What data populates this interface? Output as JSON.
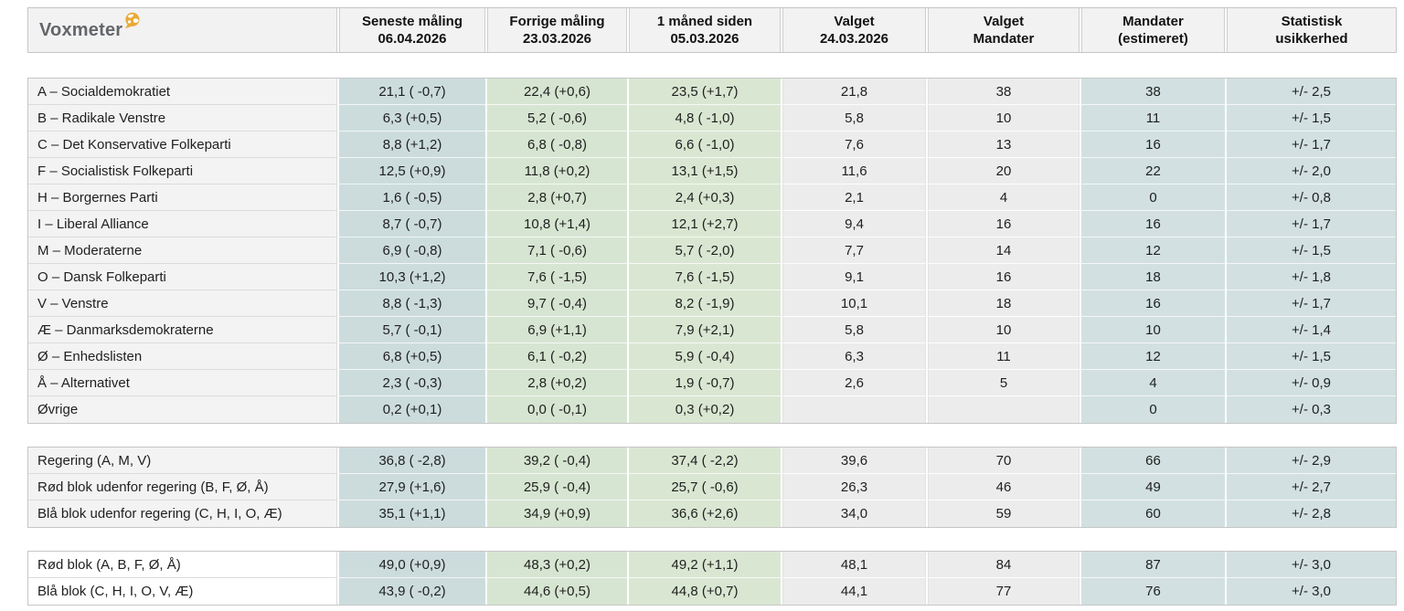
{
  "brand": {
    "name": "Voxmeter",
    "icon": "globe-icon",
    "icon_color": "#eaa934",
    "text_color": "#63666a"
  },
  "colors": {
    "teal_latest": "#ccdcdd",
    "teal_mandates": "#d2e0e1",
    "green_previous": "#d6e5d1",
    "green_month": "#d9e7d2",
    "gray_election": "#ececec",
    "name_gray": "#f3f3f3",
    "header_bg": "#f2f2f2",
    "border": "#c6c6c6"
  },
  "chart_data": {
    "type": "table",
    "title": "Voxmeter",
    "columns": [
      {
        "label": "Seneste måling",
        "sublabel": "06.04.2026",
        "style": "teal1"
      },
      {
        "label": "Forrige måling",
        "sublabel": "23.03.2026",
        "style": "green1"
      },
      {
        "label": "1 måned siden",
        "sublabel": "05.03.2026",
        "style": "green2"
      },
      {
        "label": "Valget",
        "sublabel": "24.03.2026",
        "style": "grayc"
      },
      {
        "label": "Valget",
        "sublabel": "Mandater",
        "style": "grayc"
      },
      {
        "label": "Mandater",
        "sublabel": "(estimeret)",
        "style": "teal2"
      },
      {
        "label": "Statistisk",
        "sublabel": "usikkerhed",
        "style": "teal2"
      }
    ],
    "sections": [
      {
        "name_style": "namebg-gray",
        "rows": [
          [
            "A – Socialdemokratiet",
            "21,1 ( -0,7)",
            "22,4 (+0,6)",
            "23,5 (+1,7)",
            "21,8",
            "38",
            "38",
            "+/- 2,5"
          ],
          [
            "B – Radikale Venstre",
            "6,3 (+0,5)",
            "5,2 ( -0,6)",
            "4,8 ( -1,0)",
            "5,8",
            "10",
            "11",
            "+/- 1,5"
          ],
          [
            "C – Det Konservative Folkeparti",
            "8,8 (+1,2)",
            "6,8 ( -0,8)",
            "6,6 ( -1,0)",
            "7,6",
            "13",
            "16",
            "+/- 1,7"
          ],
          [
            "F – Socialistisk Folkeparti",
            "12,5 (+0,9)",
            "11,8 (+0,2)",
            "13,1 (+1,5)",
            "11,6",
            "20",
            "22",
            "+/- 2,0"
          ],
          [
            "H – Borgernes Parti",
            "1,6 ( -0,5)",
            "2,8 (+0,7)",
            "2,4 (+0,3)",
            "2,1",
            "4",
            "0",
            "+/- 0,8"
          ],
          [
            "I – Liberal Alliance",
            "8,7 ( -0,7)",
            "10,8 (+1,4)",
            "12,1 (+2,7)",
            "9,4",
            "16",
            "16",
            "+/- 1,7"
          ],
          [
            "M – Moderaterne",
            "6,9 ( -0,8)",
            "7,1 ( -0,6)",
            "5,7 ( -2,0)",
            "7,7",
            "14",
            "12",
            "+/- 1,5"
          ],
          [
            "O – Dansk Folkeparti",
            "10,3 (+1,2)",
            "7,6 ( -1,5)",
            "7,6 ( -1,5)",
            "9,1",
            "16",
            "18",
            "+/- 1,8"
          ],
          [
            "V – Venstre",
            "8,8 ( -1,3)",
            "9,7 ( -0,4)",
            "8,2 ( -1,9)",
            "10,1",
            "18",
            "16",
            "+/- 1,7"
          ],
          [
            "Æ – Danmarksdemokraterne",
            "5,7 ( -0,1)",
            "6,9 (+1,1)",
            "7,9 (+2,1)",
            "5,8",
            "10",
            "10",
            "+/- 1,4"
          ],
          [
            "Ø – Enhedslisten",
            "6,8 (+0,5)",
            "6,1 ( -0,2)",
            "5,9 ( -0,4)",
            "6,3",
            "11",
            "12",
            "+/- 1,5"
          ],
          [
            "Å – Alternativet",
            "2,3 ( -0,3)",
            "2,8 (+0,2)",
            "1,9 ( -0,7)",
            "2,6",
            "5",
            "4",
            "+/- 0,9"
          ],
          [
            "Øvrige",
            "0,2 (+0,1)",
            "0,0 ( -0,1)",
            "0,3 (+0,2)",
            "",
            "",
            "0",
            "+/- 0,3"
          ]
        ]
      },
      {
        "name_style": "namebg-gray",
        "rows": [
          [
            "Regering (A, M, V)",
            "36,8 ( -2,8)",
            "39,2 ( -0,4)",
            "37,4 ( -2,2)",
            "39,6",
            "70",
            "66",
            "+/- 2,9"
          ],
          [
            "Rød blok udenfor regering (B, F, Ø, Å)",
            "27,9 (+1,6)",
            "25,9 ( -0,4)",
            "25,7 ( -0,6)",
            "26,3",
            "46",
            "49",
            "+/- 2,7"
          ],
          [
            "Blå blok udenfor regering (C, H, I, O, Æ)",
            "35,1 (+1,1)",
            "34,9 (+0,9)",
            "36,6 (+2,6)",
            "34,0",
            "59",
            "60",
            "+/- 2,8"
          ]
        ]
      },
      {
        "name_style": "namebg-white",
        "rows": [
          [
            "Rød blok (A, B, F, Ø, Å)",
            "49,0 (+0,9)",
            "48,3 (+0,2)",
            "49,2 (+1,1)",
            "48,1",
            "84",
            "87",
            "+/- 3,0"
          ],
          [
            "Blå blok (C, H, I, O, V, Æ)",
            "43,9 ( -0,2)",
            "44,6 (+0,5)",
            "44,8 (+0,7)",
            "44,1",
            "77",
            "76",
            "+/- 3,0"
          ]
        ]
      }
    ]
  }
}
